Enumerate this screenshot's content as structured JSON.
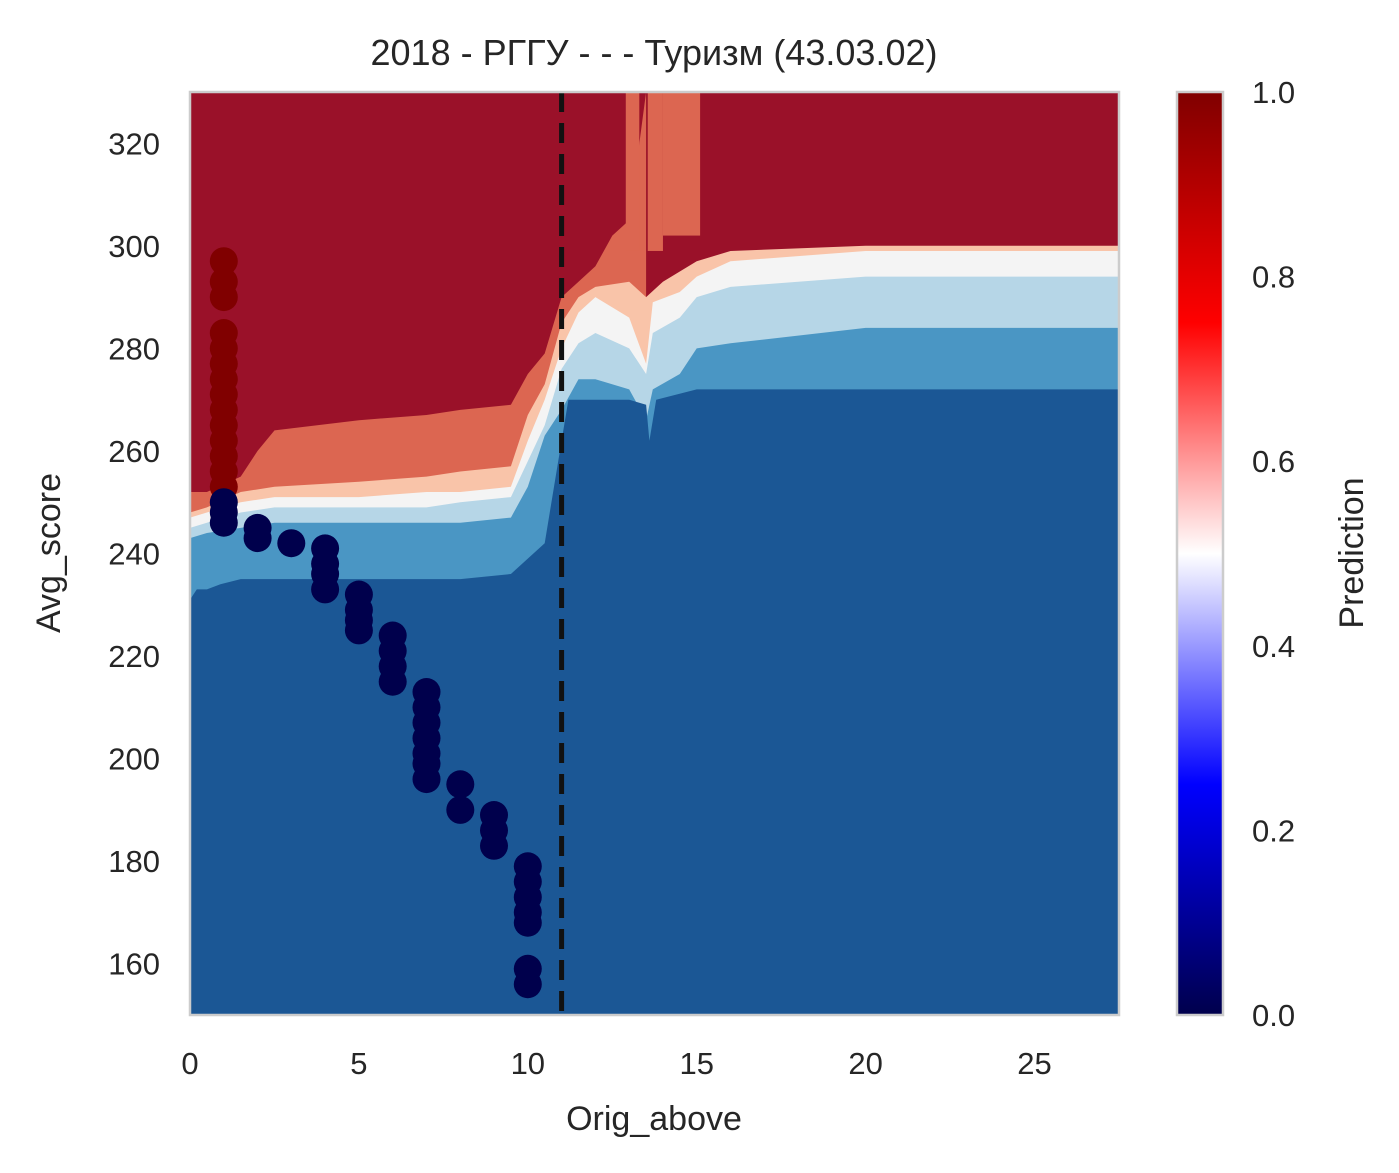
{
  "chart_data": {
    "type": "contour",
    "title": "2018 - РГГУ - - - Туризм (43.03.02)",
    "xlabel": "Orig_above",
    "ylabel": "Avg_score",
    "xlim": [
      0,
      27.5
    ],
    "ylim": [
      150,
      330
    ],
    "xticks": [
      0,
      5,
      10,
      15,
      20,
      25
    ],
    "yticks": [
      160,
      180,
      200,
      220,
      240,
      260,
      280,
      300,
      320
    ],
    "grid": false,
    "threshold_line": {
      "x": 11,
      "style": "dashed",
      "color": "#111111"
    },
    "colorbar": {
      "label": "Prediction",
      "ticks": [
        "0.0",
        "0.2",
        "0.4",
        "0.6",
        "0.8",
        "1.0"
      ],
      "range": [
        0,
        1
      ],
      "colormap": "seismic",
      "colors": [
        "#00004c",
        "#0000ff",
        "#ffffff",
        "#ff0000",
        "#800000"
      ]
    },
    "contour_levels": [
      {
        "range": "0.0-0.125",
        "color": "#1b5795"
      },
      {
        "range": "0.125-0.25",
        "color": "#4a96c4"
      },
      {
        "range": "0.25-0.375",
        "color": "#b6d6e7"
      },
      {
        "range": "0.375-0.5",
        "color": "#f4f4f4"
      },
      {
        "range": "0.5-0.625",
        "color": "#f9c4a9"
      },
      {
        "range": "0.625-0.875",
        "color": "#dc6651"
      },
      {
        "range": "0.875-1.0",
        "color": "#9a1129"
      }
    ],
    "contour_boundaries": [
      {
        "name": "b12",
        "points": [
          [
            0,
            231
          ],
          [
            0.2,
            233
          ],
          [
            0.5,
            233
          ],
          [
            0.9,
            234
          ],
          [
            1.5,
            235
          ],
          [
            2.5,
            235
          ],
          [
            5,
            235
          ],
          [
            8,
            235
          ],
          [
            9.5,
            236
          ],
          [
            10,
            239
          ],
          [
            10.5,
            242
          ],
          [
            11,
            262
          ],
          [
            11.2,
            270
          ],
          [
            12,
            270
          ],
          [
            13,
            270
          ],
          [
            13.5,
            269
          ],
          [
            13.6,
            262
          ],
          [
            13.8,
            270
          ],
          [
            15,
            272
          ],
          [
            20,
            272
          ],
          [
            27.5,
            272
          ]
        ]
      },
      {
        "name": "b23",
        "points": [
          [
            0,
            243
          ],
          [
            0.5,
            244
          ],
          [
            1.5,
            245
          ],
          [
            2.5,
            246
          ],
          [
            5,
            246
          ],
          [
            8,
            246
          ],
          [
            9.5,
            247
          ],
          [
            10,
            253
          ],
          [
            10.5,
            263
          ],
          [
            11,
            268
          ],
          [
            11.5,
            274
          ],
          [
            12,
            274
          ],
          [
            13,
            272
          ],
          [
            13.5,
            266
          ],
          [
            13.7,
            272
          ],
          [
            14.5,
            275
          ],
          [
            15,
            280
          ],
          [
            16,
            281
          ],
          [
            20,
            284
          ],
          [
            27.5,
            284
          ]
        ]
      },
      {
        "name": "b34",
        "points": [
          [
            0,
            245
          ],
          [
            0.5,
            246
          ],
          [
            1.5,
            248
          ],
          [
            2.5,
            249
          ],
          [
            5,
            249
          ],
          [
            7,
            249
          ],
          [
            8,
            250
          ],
          [
            9.5,
            251
          ],
          [
            10,
            258
          ],
          [
            10.5,
            265
          ],
          [
            11,
            276
          ],
          [
            11.5,
            281
          ],
          [
            12,
            283
          ],
          [
            13,
            280
          ],
          [
            13.5,
            275
          ],
          [
            13.7,
            283
          ],
          [
            14.5,
            286
          ],
          [
            15,
            290
          ],
          [
            16,
            292
          ],
          [
            20,
            294
          ],
          [
            27.5,
            294
          ]
        ]
      },
      {
        "name": "b45",
        "points": [
          [
            0,
            247
          ],
          [
            0.5,
            248
          ],
          [
            1.5,
            250
          ],
          [
            2.5,
            251
          ],
          [
            5,
            251
          ],
          [
            7,
            252
          ],
          [
            8,
            252
          ],
          [
            9.5,
            253
          ],
          [
            10,
            262
          ],
          [
            10.5,
            270
          ],
          [
            11,
            280
          ],
          [
            11.5,
            287
          ],
          [
            12,
            290
          ],
          [
            13,
            286
          ],
          [
            13.5,
            277
          ],
          [
            13.7,
            289
          ],
          [
            14.5,
            291
          ],
          [
            15,
            294
          ],
          [
            16,
            297
          ],
          [
            20,
            299
          ],
          [
            27.5,
            299
          ]
        ]
      },
      {
        "name": "b56",
        "points": [
          [
            0,
            248
          ],
          [
            0.5,
            249
          ],
          [
            1.5,
            252
          ],
          [
            2.5,
            253
          ],
          [
            5,
            254
          ],
          [
            7,
            255
          ],
          [
            8,
            256
          ],
          [
            9.5,
            257
          ],
          [
            10,
            267
          ],
          [
            10.5,
            273
          ],
          [
            11,
            285
          ],
          [
            11.5,
            290
          ],
          [
            12,
            292
          ],
          [
            13,
            293
          ],
          [
            13.5,
            290
          ],
          [
            14,
            293
          ],
          [
            15,
            297
          ],
          [
            16,
            299
          ],
          [
            20,
            300
          ],
          [
            27.5,
            300
          ]
        ]
      },
      {
        "name": "b67",
        "points": [
          [
            0,
            252
          ],
          [
            0.5,
            252
          ],
          [
            1.5,
            255
          ],
          [
            2,
            260
          ],
          [
            2.5,
            264
          ],
          [
            5,
            266
          ],
          [
            7,
            267
          ],
          [
            8,
            268
          ],
          [
            9.5,
            269
          ],
          [
            10,
            275
          ],
          [
            10.5,
            279
          ],
          [
            11,
            290
          ],
          [
            11.5,
            293
          ],
          [
            12,
            296
          ],
          [
            12.5,
            302
          ],
          [
            13,
            305
          ],
          [
            13.5,
            330
          ]
        ]
      }
    ],
    "red_band_patches": [
      {
        "x": [
          12.9,
          13.3
        ],
        "y": [
          299,
          330
        ]
      },
      {
        "x": [
          13.55,
          14
        ],
        "y": [
          299,
          330
        ]
      },
      {
        "x": [
          14,
          15.1
        ],
        "y": [
          302,
          330
        ]
      }
    ],
    "series": [
      {
        "name": "",
        "marker": "circle",
        "color_by": "prediction",
        "points": [
          [
            1,
            297,
            1
          ],
          [
            1,
            293,
            1
          ],
          [
            1,
            290,
            1
          ],
          [
            1,
            283,
            1
          ],
          [
            1,
            280,
            1
          ],
          [
            1,
            277,
            1
          ],
          [
            1,
            274,
            1
          ],
          [
            1,
            271,
            1
          ],
          [
            1,
            268,
            1
          ],
          [
            1,
            265,
            1
          ],
          [
            1,
            262,
            1
          ],
          [
            1,
            259,
            1
          ],
          [
            1,
            256,
            1
          ],
          [
            1,
            253,
            1
          ],
          [
            1,
            250,
            0
          ],
          [
            1,
            248,
            0
          ],
          [
            1,
            246,
            0
          ],
          [
            2,
            245,
            0
          ],
          [
            2,
            243,
            0
          ],
          [
            3,
            242,
            0
          ],
          [
            4,
            241,
            0
          ],
          [
            4,
            238,
            0
          ],
          [
            4,
            236,
            0
          ],
          [
            4,
            233,
            0
          ],
          [
            5,
            232,
            0
          ],
          [
            5,
            229,
            0
          ],
          [
            5,
            227,
            0
          ],
          [
            5,
            225,
            0
          ],
          [
            6,
            224,
            0
          ],
          [
            6,
            221,
            0
          ],
          [
            6,
            218,
            0
          ],
          [
            6,
            215,
            0
          ],
          [
            7,
            213,
            0
          ],
          [
            7,
            210,
            0
          ],
          [
            7,
            207,
            0
          ],
          [
            7,
            204,
            0
          ],
          [
            7,
            201,
            0
          ],
          [
            7,
            199,
            0
          ],
          [
            7,
            196,
            0
          ],
          [
            8,
            195,
            0
          ],
          [
            8,
            190,
            0
          ],
          [
            9,
            189,
            0
          ],
          [
            9,
            186,
            0
          ],
          [
            9,
            183,
            0
          ],
          [
            10,
            179,
            0
          ],
          [
            10,
            176,
            0
          ],
          [
            10,
            173,
            0
          ],
          [
            10,
            170,
            0
          ],
          [
            10,
            168,
            0
          ],
          [
            10,
            159,
            0
          ],
          [
            10,
            156,
            0
          ]
        ]
      }
    ]
  }
}
